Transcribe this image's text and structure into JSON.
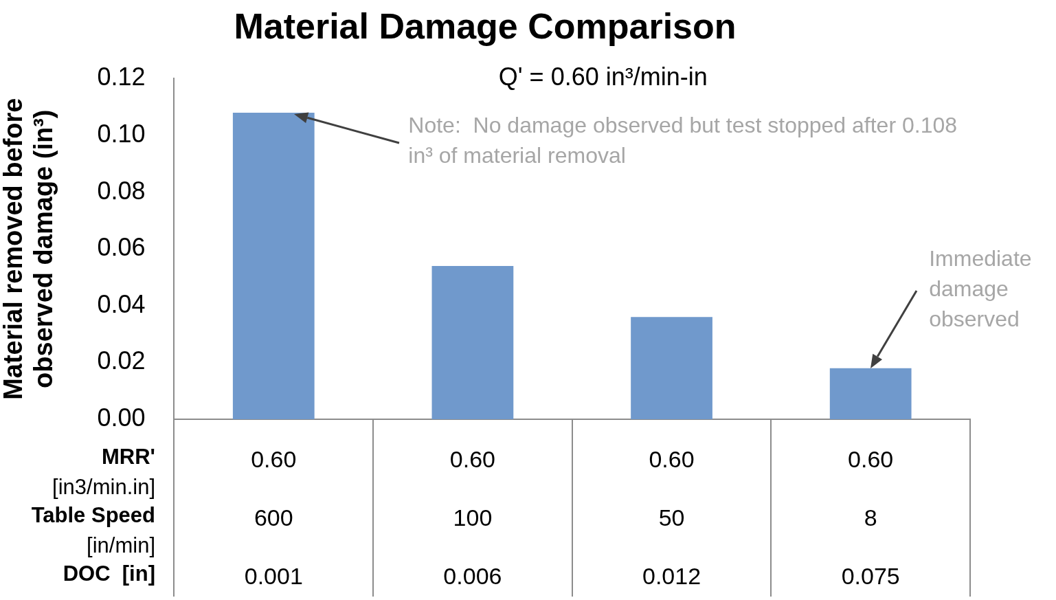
{
  "chart_data": {
    "type": "bar",
    "title": "Material Damage Comparison",
    "subtitle": "Q' = 0.60 in³/min-in",
    "ylabel": "Material removed before observed damage (in³)",
    "categories": [
      "0.60\n600\n0.001",
      "0.60\n100\n0.006",
      "0.60\n50\n0.012",
      "0.60\n8\n0.075"
    ],
    "values": [
      0.108,
      0.054,
      0.036,
      0.018
    ],
    "color": "#7099cc",
    "ylim": [
      0,
      0.12
    ],
    "yticks": [
      {
        "value": 0,
        "label": "0.00"
      },
      {
        "value": 0.02,
        "label": "0.02"
      },
      {
        "value": 0.04,
        "label": "0.04"
      },
      {
        "value": 0.06,
        "label": "0.06"
      },
      {
        "value": 0.08,
        "label": "0.08"
      },
      {
        "value": 0.1,
        "label": "0.10"
      },
      {
        "value": 0.12,
        "label": "0.12"
      }
    ],
    "legend": false,
    "annotations": [
      "Note:  No damage observed but test stopped after 0.108 in³ of material removal",
      "Immediate damage observed",
      "MRR'\n[in3/min.in]",
      "Table Speed\n[in/min]",
      "DOC  [in]"
    ]
  }
}
